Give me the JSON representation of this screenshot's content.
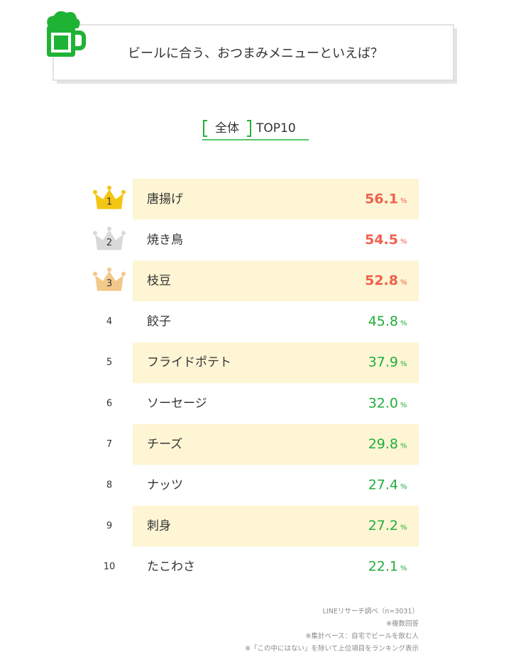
{
  "header": {
    "title": "ビールに合う、おつまみメニューといえば？"
  },
  "subtitle": {
    "scope": "全体",
    "label": "TOP10"
  },
  "table": {
    "unit": "%",
    "rows": [
      {
        "rank": 1,
        "item": "唐揚げ",
        "value": "56.1"
      },
      {
        "rank": 2,
        "item": "焼き鳥",
        "value": "54.5"
      },
      {
        "rank": 3,
        "item": "枝豆",
        "value": "52.8"
      },
      {
        "rank": 4,
        "item": "餃子",
        "value": "45.8"
      },
      {
        "rank": 5,
        "item": "フライドポテト",
        "value": "37.9"
      },
      {
        "rank": 6,
        "item": "ソーセージ",
        "value": "32.0"
      },
      {
        "rank": 7,
        "item": "チーズ",
        "value": "29.8"
      },
      {
        "rank": 8,
        "item": "ナッツ",
        "value": "27.4"
      },
      {
        "rank": 9,
        "item": "刺身",
        "value": "27.2"
      },
      {
        "rank": 10,
        "item": "たこわさ",
        "value": "22.1"
      }
    ]
  },
  "notes": [
    "LINEリサーチ調べ（n=3031）",
    "※複数回答",
    "※集計ベース：自宅でビールを飲む人",
    "※「この中にはない」を除いて上位項目をランキング表示"
  ]
}
